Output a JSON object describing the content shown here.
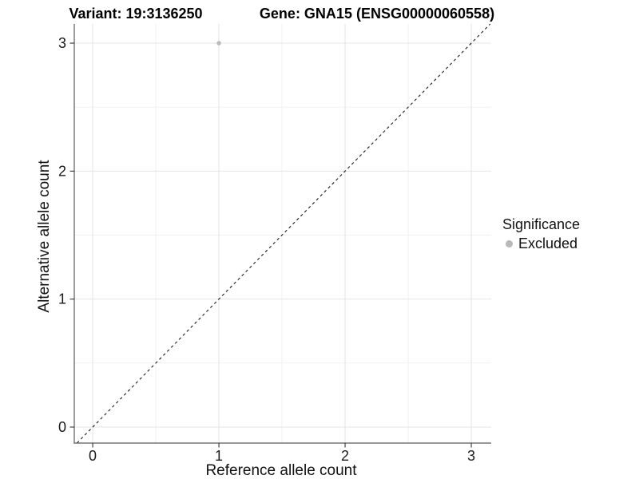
{
  "chart_data": {
    "type": "scatter",
    "titles": {
      "variant": "Variant: 19:3136250",
      "gene": "Gene: GNA15 (ENSG00000060558)"
    },
    "xlabel": "Reference allele count",
    "ylabel": "Alternative allele count",
    "x_ticks": [
      0,
      1,
      2,
      3
    ],
    "y_ticks": [
      0,
      1,
      2,
      3
    ],
    "x_minor_ticks": [
      0.5,
      1.5,
      2.5
    ],
    "y_minor_ticks": [
      0.5,
      1.5,
      2.5
    ],
    "xlim": [
      -0.146,
      3.158
    ],
    "ylim": [
      -0.125,
      3.15
    ],
    "grid": true,
    "identity_line": {
      "equation": "y = x",
      "style": "dashed",
      "color": "#1a1a1a"
    },
    "points": [
      {
        "x": 1,
        "y": 3,
        "significance": "Excluded"
      }
    ],
    "legend": {
      "title": "Significance",
      "position": "right",
      "items": [
        {
          "label": "Excluded",
          "color": "#b9b9b9"
        }
      ]
    },
    "colors": {
      "background": "#ffffff",
      "point": "#b9b9b9",
      "grid_major": "#e4e4e4",
      "grid_minor": "#f1f1f1",
      "axis_line": "#5a5a5a",
      "tick_mark": "#333333",
      "tick_label": "#1a1a1a"
    }
  }
}
